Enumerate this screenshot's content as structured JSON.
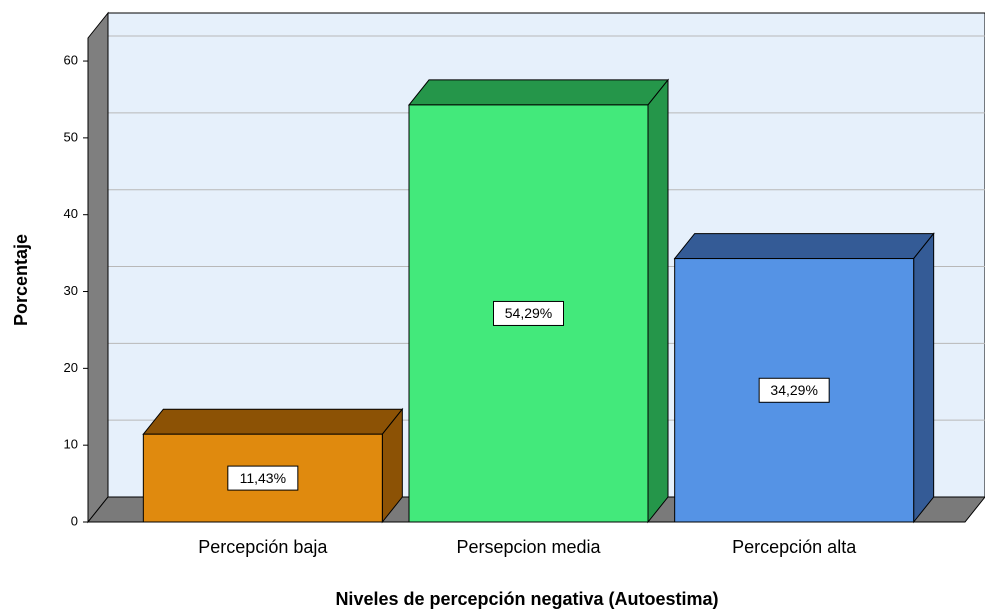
{
  "chart_data": {
    "type": "bar3d",
    "xlabel": "Niveles de percepción negativa (Autoestima)",
    "ylabel": "Porcentaje",
    "categories": [
      "Percepción baja",
      "Persepcion media",
      "Percepción alta"
    ],
    "values": [
      11.43,
      54.29,
      34.29
    ],
    "value_labels": [
      "11,43%",
      "54,29%",
      "34,29%"
    ],
    "colors": [
      "#e08a0e",
      "#43e97b",
      "#5593e5"
    ],
    "side_colors": [
      "#8c5205",
      "#25964a",
      "#345b96"
    ],
    "ylim": [
      0,
      63
    ],
    "yticks": [
      0,
      10,
      20,
      30,
      40,
      50,
      60
    ],
    "grid": true
  }
}
